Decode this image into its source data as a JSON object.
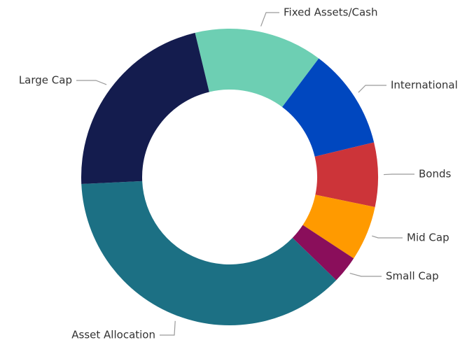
{
  "chart_data": {
    "type": "donut",
    "categories": [
      "Fixed Assets/Cash",
      "International",
      "Bonds",
      "Mid Cap",
      "Small Cap",
      "Asset Allocation",
      "Large Cap"
    ],
    "values": [
      14,
      11,
      7,
      6,
      3,
      37,
      22
    ],
    "colors": [
      "#6dcfb3",
      "#0047bf",
      "#cc3439",
      "#ff9a00",
      "#8a0e5b",
      "#1c7084",
      "#141c4e"
    ]
  }
}
